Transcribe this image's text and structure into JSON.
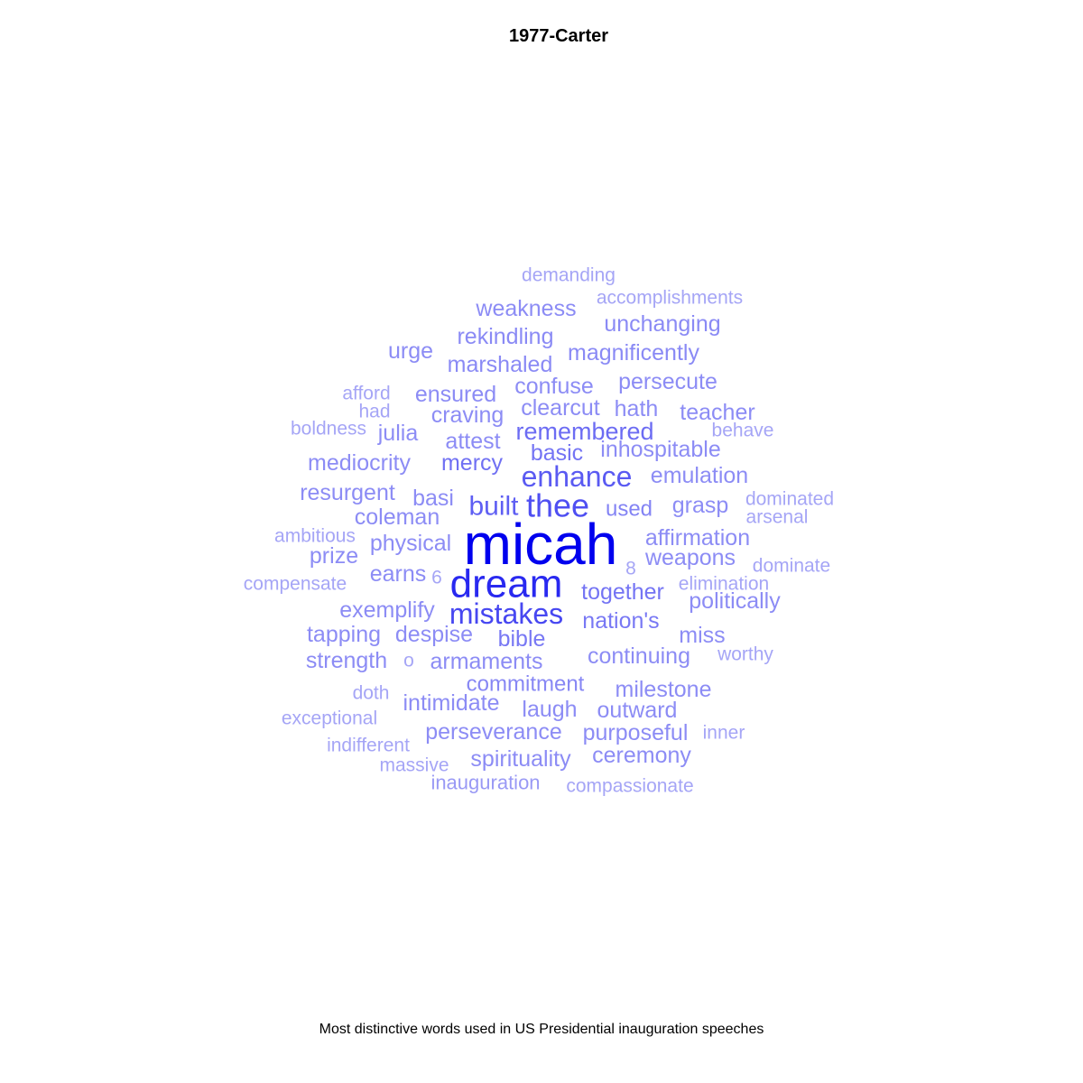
{
  "title": "1977-Carter",
  "caption": "Most distinctive words used in US Presidential inauguration speeches",
  "chart_data": {
    "type": "wordcloud",
    "title": "1977-Carter",
    "caption": "Most distinctive words used in US Presidential inauguration speeches",
    "color_scale": {
      "low": "#BBBBF7",
      "high": "#0000EE"
    },
    "words": [
      {
        "text": "micah",
        "weight": 1.0
      },
      {
        "text": "dream",
        "weight": 0.78
      },
      {
        "text": "mistakes",
        "weight": 0.62
      },
      {
        "text": "thee",
        "weight": 0.58
      },
      {
        "text": "enhance",
        "weight": 0.52
      },
      {
        "text": "built",
        "weight": 0.5
      },
      {
        "text": "remembered",
        "weight": 0.42
      },
      {
        "text": "mercy",
        "weight": 0.4
      },
      {
        "text": "basic",
        "weight": 0.38
      },
      {
        "text": "together",
        "weight": 0.38
      },
      {
        "text": "nation's",
        "weight": 0.36
      },
      {
        "text": "bible",
        "weight": 0.36
      },
      {
        "text": "used",
        "weight": 0.3
      },
      {
        "text": "commitment",
        "weight": 0.28
      },
      {
        "text": "unchanging",
        "weight": 0.26
      },
      {
        "text": "rekindling",
        "weight": 0.26
      },
      {
        "text": "magnificently",
        "weight": 0.26
      },
      {
        "text": "marshaled",
        "weight": 0.26
      },
      {
        "text": "weakness",
        "weight": 0.25
      },
      {
        "text": "confuse",
        "weight": 0.25
      },
      {
        "text": "persecute",
        "weight": 0.25
      },
      {
        "text": "clearcut",
        "weight": 0.25
      },
      {
        "text": "hath",
        "weight": 0.25
      },
      {
        "text": "teacher",
        "weight": 0.25
      },
      {
        "text": "craving",
        "weight": 0.25
      },
      {
        "text": "ensured",
        "weight": 0.25
      },
      {
        "text": "attest",
        "weight": 0.25
      },
      {
        "text": "inhospitable",
        "weight": 0.25
      },
      {
        "text": "emulation",
        "weight": 0.25
      },
      {
        "text": "grasp",
        "weight": 0.25
      },
      {
        "text": "affirmation",
        "weight": 0.25
      },
      {
        "text": "weapons",
        "weight": 0.25
      },
      {
        "text": "politically",
        "weight": 0.25
      },
      {
        "text": "continuing",
        "weight": 0.25
      },
      {
        "text": "miss",
        "weight": 0.25
      },
      {
        "text": "milestone",
        "weight": 0.25
      },
      {
        "text": "outward",
        "weight": 0.25
      },
      {
        "text": "laugh",
        "weight": 0.25
      },
      {
        "text": "purposeful",
        "weight": 0.25
      },
      {
        "text": "ceremony",
        "weight": 0.25
      },
      {
        "text": "spirituality",
        "weight": 0.25
      },
      {
        "text": "perseverance",
        "weight": 0.25
      },
      {
        "text": "intimidate",
        "weight": 0.25
      },
      {
        "text": "armaments",
        "weight": 0.25
      },
      {
        "text": "despise",
        "weight": 0.25
      },
      {
        "text": "tapping",
        "weight": 0.25
      },
      {
        "text": "exemplify",
        "weight": 0.25
      },
      {
        "text": "strength",
        "weight": 0.25
      },
      {
        "text": "earns",
        "weight": 0.25
      },
      {
        "text": "physical",
        "weight": 0.25
      },
      {
        "text": "prize",
        "weight": 0.25
      },
      {
        "text": "coleman",
        "weight": 0.25
      },
      {
        "text": "resurgent",
        "weight": 0.25
      },
      {
        "text": "basi",
        "weight": 0.25
      },
      {
        "text": "mediocrity",
        "weight": 0.25
      },
      {
        "text": "julia",
        "weight": 0.25
      },
      {
        "text": "urge",
        "weight": 0.25
      },
      {
        "text": "inauguration",
        "weight": 0.18
      },
      {
        "text": "demanding",
        "weight": 0.12
      },
      {
        "text": "accomplishments",
        "weight": 0.12
      },
      {
        "text": "afford",
        "weight": 0.12
      },
      {
        "text": "had",
        "weight": 0.12
      },
      {
        "text": "boldness",
        "weight": 0.12
      },
      {
        "text": "behave",
        "weight": 0.12
      },
      {
        "text": "dominated",
        "weight": 0.12
      },
      {
        "text": "arsenal",
        "weight": 0.12
      },
      {
        "text": "ambitious",
        "weight": 0.12
      },
      {
        "text": "compensate",
        "weight": 0.12
      },
      {
        "text": "dominate",
        "weight": 0.12
      },
      {
        "text": "elimination",
        "weight": 0.12
      },
      {
        "text": "worthy",
        "weight": 0.12
      },
      {
        "text": "inner",
        "weight": 0.12
      },
      {
        "text": "doth",
        "weight": 0.12
      },
      {
        "text": "exceptional",
        "weight": 0.12
      },
      {
        "text": "indifferent",
        "weight": 0.12
      },
      {
        "text": "massive",
        "weight": 0.12
      },
      {
        "text": "compassionate",
        "weight": 0.12
      },
      {
        "text": "6",
        "weight": 0.12
      },
      {
        "text": "8",
        "weight": 0.12
      },
      {
        "text": "o",
        "weight": 0.12
      }
    ]
  }
}
